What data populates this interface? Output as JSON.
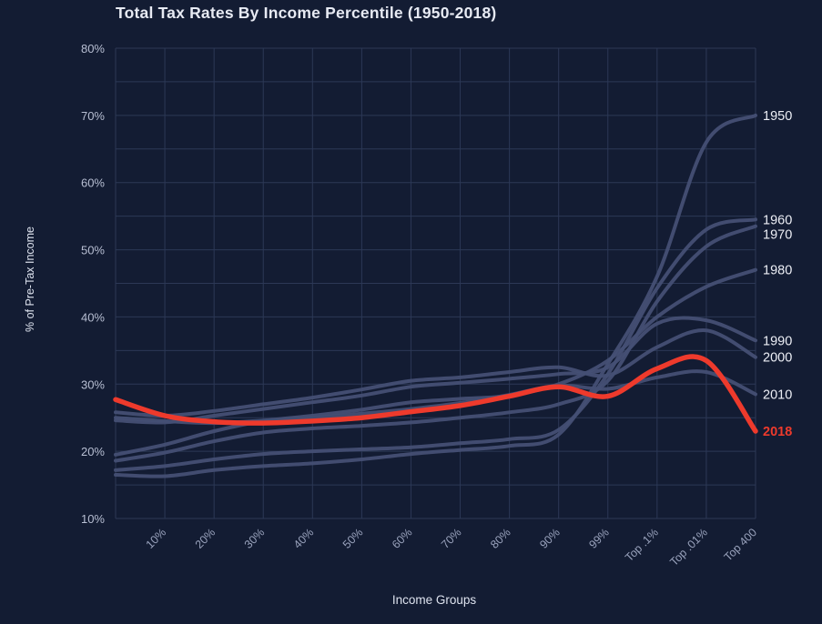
{
  "colors": {
    "background": "#131c33",
    "grid": "#2c3856",
    "series_gray": "#454f74",
    "highlight_red": "#ee3a2c",
    "title_text": "#e7eaf3",
    "x_tick_text": "#99a2bc",
    "y_tick_text": "#b8bfd3",
    "axis_label_text": "#dde2ee",
    "year_label_text": "#eceef5"
  },
  "chart_data": {
    "type": "line",
    "title": "Total Tax Rates By Income Percentile (1950-2018)",
    "xlabel": "Income Groups",
    "ylabel": "% of Pre-Tax Income",
    "x_tick_labels": [
      "10%",
      "20%",
      "30%",
      "40%",
      "50%",
      "60%",
      "70%",
      "80%",
      "90%",
      "99%",
      "Top .1%",
      "Top .01%",
      "Top 400"
    ],
    "y_tick_labels": [
      "10%",
      "20%",
      "30%",
      "40%",
      "50%",
      "60%",
      "70%",
      "80%"
    ],
    "y_ticks": [
      10,
      20,
      30,
      40,
      50,
      60,
      70,
      80
    ],
    "ylim": [
      10,
      80
    ],
    "grid_step_y_percent": 5,
    "legend_position": "right-edge-year-labels",
    "x_note": "lines start one unlabeled interval left of the 10% tick",
    "series": [
      {
        "name": "1950",
        "color": "#454f74",
        "label_color": "#eceef5",
        "highlight": false,
        "values": [
          16.5,
          16.3,
          17.2,
          17.8,
          18.2,
          18.8,
          19.6,
          20.2,
          20.8,
          22.5,
          33,
          46,
          66,
          70
        ]
      },
      {
        "name": "1960",
        "color": "#454f74",
        "label_color": "#eceef5",
        "highlight": false,
        "values": [
          17.2,
          17.8,
          18.8,
          19.6,
          20,
          20.3,
          20.6,
          21.2,
          21.8,
          23.2,
          31.5,
          44.3,
          53,
          54.5
        ]
      },
      {
        "name": "1970",
        "color": "#454f74",
        "label_color": "#eceef5",
        "highlight": false,
        "values": [
          18.6,
          19.8,
          21.5,
          22.8,
          23.4,
          23.8,
          24.3,
          25,
          25.8,
          27,
          30.5,
          42.3,
          50.5,
          53.5
        ]
      },
      {
        "name": "1980",
        "color": "#454f74",
        "label_color": "#eceef5",
        "highlight": false,
        "values": [
          19.5,
          21,
          23,
          24.5,
          25.3,
          26.2,
          27.3,
          27.8,
          28.3,
          30,
          33.5,
          40,
          44.5,
          47
        ]
      },
      {
        "name": "1990",
        "color": "#454f74",
        "label_color": "#eceef5",
        "highlight": false,
        "values": [
          24.6,
          24.3,
          25.3,
          26.3,
          27.3,
          28.3,
          29.6,
          30.2,
          30.8,
          31.5,
          32.5,
          39,
          39.5,
          36.5
        ]
      },
      {
        "name": "2000",
        "color": "#454f74",
        "label_color": "#eceef5",
        "highlight": false,
        "values": [
          25.8,
          25.3,
          26,
          27,
          28,
          29.2,
          30.5,
          31,
          31.8,
          32.5,
          31.3,
          35.5,
          38,
          34
        ]
      },
      {
        "name": "2010",
        "color": "#454f74",
        "label_color": "#eceef5",
        "highlight": false,
        "values": [
          25,
          24.5,
          24.2,
          24.6,
          25,
          25.6,
          26.3,
          27.2,
          28.4,
          29.8,
          29.3,
          31,
          31.8,
          28.5
        ]
      },
      {
        "name": "2018",
        "color": "#ee3a2c",
        "label_color": "#ee3a2c",
        "highlight": true,
        "values": [
          27.7,
          25.3,
          24.4,
          24.2,
          24.5,
          25,
          25.9,
          26.8,
          28.2,
          29.6,
          28.2,
          32.3,
          33.5,
          23
        ]
      }
    ]
  }
}
